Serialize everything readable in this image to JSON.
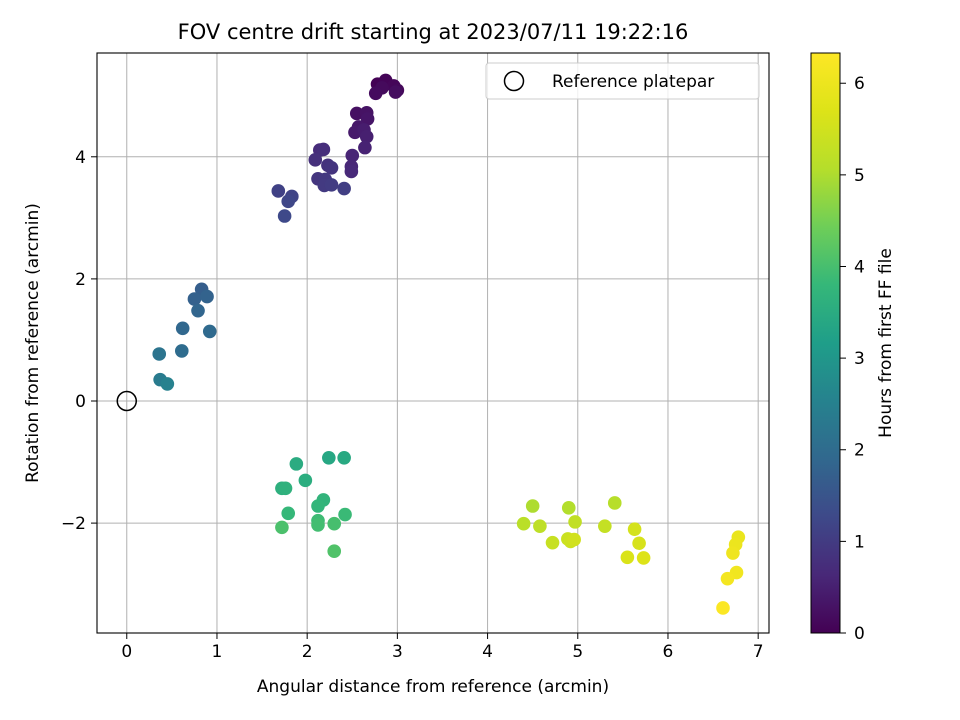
{
  "chart_data": {
    "type": "scatter",
    "title": "FOV centre drift starting at 2023/07/11 19:22:16",
    "xlabel": "Angular distance from reference (arcmin)",
    "ylabel": "Rotation from reference (arcmin)",
    "xlim": [
      -0.33,
      7.12
    ],
    "ylim": [
      -3.8,
      5.7
    ],
    "xticks": [
      0,
      1,
      2,
      3,
      4,
      5,
      6,
      7
    ],
    "yticks": [
      -2,
      0,
      2,
      4
    ],
    "ytick_labels": [
      "−2",
      "0",
      "2",
      "4"
    ],
    "grid": true,
    "legend": {
      "placement": "top-right",
      "entries": [
        "Reference platepar"
      ]
    },
    "reference_point": {
      "label": "Reference platepar",
      "x": 0,
      "y": 0
    },
    "colorbar": {
      "label": "Hours from first FF file",
      "colormap": "viridis",
      "range": [
        0,
        6.33
      ],
      "ticks": [
        0,
        1,
        2,
        3,
        4,
        5,
        6
      ]
    },
    "series": [
      {
        "points": [
          {
            "x": 2.78,
            "y": 5.19,
            "c": 0.02
          },
          {
            "x": 2.87,
            "y": 5.25,
            "c": 0.05
          },
          {
            "x": 2.96,
            "y": 5.16,
            "c": 0.08
          },
          {
            "x": 3.0,
            "y": 5.09,
            "c": 0.11
          },
          {
            "x": 2.83,
            "y": 5.13,
            "c": 0.14
          },
          {
            "x": 2.76,
            "y": 5.04,
            "c": 0.17
          },
          {
            "x": 2.98,
            "y": 5.06,
            "c": 0.2
          },
          {
            "x": 2.55,
            "y": 4.71,
            "c": 0.25
          },
          {
            "x": 2.66,
            "y": 4.72,
            "c": 0.29
          },
          {
            "x": 2.67,
            "y": 4.62,
            "c": 0.33
          },
          {
            "x": 2.57,
            "y": 4.49,
            "c": 0.37
          },
          {
            "x": 2.53,
            "y": 4.4,
            "c": 0.41
          },
          {
            "x": 2.63,
            "y": 4.44,
            "c": 0.45
          },
          {
            "x": 2.66,
            "y": 4.33,
            "c": 0.5
          },
          {
            "x": 2.64,
            "y": 4.15,
            "c": 0.54
          },
          {
            "x": 2.5,
            "y": 4.02,
            "c": 0.58
          },
          {
            "x": 2.49,
            "y": 3.84,
            "c": 0.62
          },
          {
            "x": 2.49,
            "y": 3.76,
            "c": 0.66
          },
          {
            "x": 2.14,
            "y": 4.11,
            "c": 0.7
          },
          {
            "x": 2.18,
            "y": 4.12,
            "c": 0.74
          },
          {
            "x": 2.09,
            "y": 3.95,
            "c": 0.78
          },
          {
            "x": 2.23,
            "y": 3.86,
            "c": 0.82
          },
          {
            "x": 2.27,
            "y": 3.82,
            "c": 0.86
          },
          {
            "x": 2.12,
            "y": 3.64,
            "c": 0.9
          },
          {
            "x": 2.2,
            "y": 3.63,
            "c": 0.94
          },
          {
            "x": 2.19,
            "y": 3.53,
            "c": 0.98
          },
          {
            "x": 2.27,
            "y": 3.54,
            "c": 1.02
          },
          {
            "x": 2.41,
            "y": 3.48,
            "c": 1.06
          },
          {
            "x": 1.68,
            "y": 3.44,
            "c": 1.12
          },
          {
            "x": 1.83,
            "y": 3.35,
            "c": 1.17
          },
          {
            "x": 1.79,
            "y": 3.27,
            "c": 1.22
          },
          {
            "x": 1.75,
            "y": 3.03,
            "c": 1.27
          },
          {
            "x": 0.83,
            "y": 1.83,
            "c": 1.7
          },
          {
            "x": 0.75,
            "y": 1.67,
            "c": 1.75
          },
          {
            "x": 0.89,
            "y": 1.71,
            "c": 1.8
          },
          {
            "x": 0.79,
            "y": 1.48,
            "c": 1.85
          },
          {
            "x": 0.62,
            "y": 1.19,
            "c": 1.9
          },
          {
            "x": 0.92,
            "y": 1.14,
            "c": 1.95
          },
          {
            "x": 0.61,
            "y": 0.82,
            "c": 2.0
          },
          {
            "x": 0.36,
            "y": 0.77,
            "c": 2.2
          },
          {
            "x": 0.37,
            "y": 0.35,
            "c": 2.35
          },
          {
            "x": 0.45,
            "y": 0.28,
            "c": 2.5
          },
          {
            "x": 2.24,
            "y": -0.93,
            "c": 3.4
          },
          {
            "x": 2.41,
            "y": -0.93,
            "c": 3.45
          },
          {
            "x": 1.88,
            "y": -1.03,
            "c": 3.5
          },
          {
            "x": 1.98,
            "y": -1.3,
            "c": 3.55
          },
          {
            "x": 1.72,
            "y": -1.43,
            "c": 3.6
          },
          {
            "x": 1.76,
            "y": -1.43,
            "c": 3.65
          },
          {
            "x": 2.18,
            "y": -1.62,
            "c": 3.7
          },
          {
            "x": 2.12,
            "y": -1.72,
            "c": 3.75
          },
          {
            "x": 1.79,
            "y": -1.84,
            "c": 3.8
          },
          {
            "x": 2.42,
            "y": -1.86,
            "c": 3.85
          },
          {
            "x": 2.12,
            "y": -1.96,
            "c": 3.9
          },
          {
            "x": 2.12,
            "y": -2.03,
            "c": 3.95
          },
          {
            "x": 2.3,
            "y": -2.01,
            "c": 4.0
          },
          {
            "x": 1.72,
            "y": -2.07,
            "c": 4.05
          },
          {
            "x": 2.3,
            "y": -2.46,
            "c": 4.1
          },
          {
            "x": 4.5,
            "y": -1.72,
            "c": 5.0
          },
          {
            "x": 4.9,
            "y": -1.75,
            "c": 5.05
          },
          {
            "x": 5.41,
            "y": -1.67,
            "c": 5.1
          },
          {
            "x": 4.4,
            "y": -2.01,
            "c": 5.15
          },
          {
            "x": 4.58,
            "y": -2.05,
            "c": 5.2
          },
          {
            "x": 4.97,
            "y": -1.98,
            "c": 5.25
          },
          {
            "x": 5.3,
            "y": -2.05,
            "c": 5.3
          },
          {
            "x": 4.72,
            "y": -2.32,
            "c": 5.35
          },
          {
            "x": 4.89,
            "y": -2.26,
            "c": 5.4
          },
          {
            "x": 4.92,
            "y": -2.3,
            "c": 5.45
          },
          {
            "x": 4.96,
            "y": -2.27,
            "c": 5.5
          },
          {
            "x": 5.63,
            "y": -2.1,
            "c": 5.55
          },
          {
            "x": 5.68,
            "y": -2.33,
            "c": 5.6
          },
          {
            "x": 5.55,
            "y": -2.56,
            "c": 5.65
          },
          {
            "x": 5.73,
            "y": -2.57,
            "c": 5.7
          },
          {
            "x": 6.78,
            "y": -2.23,
            "c": 5.95
          },
          {
            "x": 6.75,
            "y": -2.35,
            "c": 6.0
          },
          {
            "x": 6.72,
            "y": -2.49,
            "c": 6.05
          },
          {
            "x": 6.76,
            "y": -2.81,
            "c": 6.1
          },
          {
            "x": 6.66,
            "y": -2.91,
            "c": 6.15
          },
          {
            "x": 6.61,
            "y": -3.39,
            "c": 6.3
          }
        ]
      }
    ]
  }
}
